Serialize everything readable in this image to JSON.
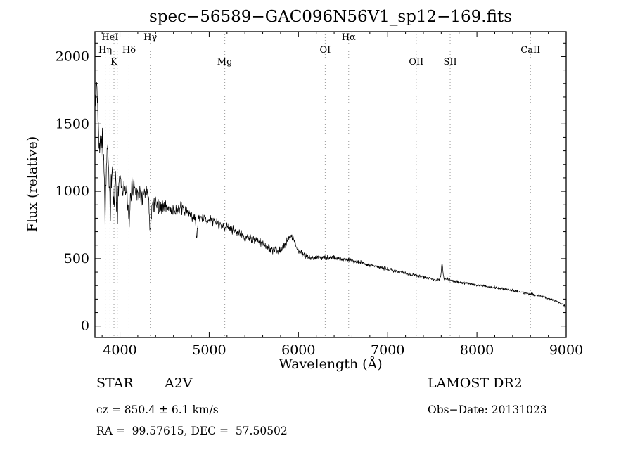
{
  "chart_data": {
    "type": "line",
    "title": "spec−56589−GAC096N56V1_sp12−169.fits",
    "xlabel": "Wavelength (Å)",
    "ylabel": "Flux (relative)",
    "xlim": [
      3720,
      9000
    ],
    "ylim": [
      -85,
      2185
    ],
    "x_ticks": [
      4000,
      5000,
      6000,
      7000,
      8000,
      9000
    ],
    "y_ticks": [
      0,
      500,
      1000,
      1500,
      2000
    ],
    "x_minor_step": 200,
    "y_minor_step": 100,
    "grid": false,
    "line_color": "#000000",
    "spectral_line_color": "#999999",
    "spectral_lines": [
      {
        "label": "Hη",
        "wavelength": 3835,
        "row": 2
      },
      {
        "label": "HeI",
        "wavelength": 3889,
        "row": 1
      },
      {
        "label": "K",
        "wavelength": 3933,
        "row": 3
      },
      {
        "label": "",
        "wavelength": 3970,
        "row": 2
      },
      {
        "label": "Hδ",
        "wavelength": 4102,
        "row": 2
      },
      {
        "label": "Hγ",
        "wavelength": 4340,
        "row": 1
      },
      {
        "label": "Mg",
        "wavelength": 5175,
        "row": 3
      },
      {
        "label": "OI",
        "wavelength": 6300,
        "row": 2
      },
      {
        "label": "Hα",
        "wavelength": 6563,
        "row": 1
      },
      {
        "label": "OII",
        "wavelength": 7320,
        "row": 3
      },
      {
        "label": "SII",
        "wavelength": 7700,
        "row": 3
      },
      {
        "label": "CaII",
        "wavelength": 8600,
        "row": 2
      }
    ],
    "continuum": [
      [
        3720,
        1600
      ],
      [
        3740,
        1800
      ],
      [
        3770,
        1350
      ],
      [
        3800,
        1400
      ],
      [
        3830,
        1150
      ],
      [
        3860,
        1300
      ],
      [
        3890,
        1100
      ],
      [
        3920,
        1150
      ],
      [
        3960,
        1100
      ],
      [
        4000,
        1100
      ],
      [
        4050,
        1000
      ],
      [
        4100,
        980
      ],
      [
        4150,
        1050
      ],
      [
        4200,
        1000
      ],
      [
        4250,
        950
      ],
      [
        4300,
        980
      ],
      [
        4350,
        900
      ],
      [
        4400,
        920
      ],
      [
        4450,
        880
      ],
      [
        4500,
        900
      ],
      [
        4600,
        850
      ],
      [
        4700,
        870
      ],
      [
        4800,
        820
      ],
      [
        4900,
        800
      ],
      [
        5000,
        790
      ],
      [
        5100,
        760
      ],
      [
        5200,
        730
      ],
      [
        5300,
        700
      ],
      [
        5400,
        660
      ],
      [
        5500,
        640
      ],
      [
        5600,
        610
      ],
      [
        5700,
        560
      ],
      [
        5800,
        560
      ],
      [
        5880,
        640
      ],
      [
        5920,
        680
      ],
      [
        5960,
        620
      ],
      [
        6000,
        560
      ],
      [
        6050,
        530
      ],
      [
        6100,
        515
      ],
      [
        6200,
        510
      ],
      [
        6300,
        505
      ],
      [
        6400,
        510
      ],
      [
        6500,
        495
      ],
      [
        6563,
        490
      ],
      [
        6650,
        480
      ],
      [
        6750,
        460
      ],
      [
        6850,
        445
      ],
      [
        6950,
        430
      ],
      [
        7050,
        415
      ],
      [
        7150,
        400
      ],
      [
        7250,
        385
      ],
      [
        7350,
        370
      ],
      [
        7450,
        355
      ],
      [
        7550,
        345
      ],
      [
        7650,
        350
      ],
      [
        7750,
        330
      ],
      [
        7850,
        320
      ],
      [
        7950,
        310
      ],
      [
        8050,
        300
      ],
      [
        8150,
        290
      ],
      [
        8250,
        280
      ],
      [
        8350,
        270
      ],
      [
        8450,
        258
      ],
      [
        8550,
        245
      ],
      [
        8650,
        230
      ],
      [
        8750,
        215
      ],
      [
        8850,
        195
      ],
      [
        8950,
        165
      ],
      [
        9000,
        140
      ]
    ],
    "features": [
      {
        "center": 3835,
        "amp": -300,
        "width": 8
      },
      {
        "center": 3889,
        "amp": -280,
        "width": 8
      },
      {
        "center": 3933,
        "amp": -250,
        "width": 7
      },
      {
        "center": 3970,
        "amp": -280,
        "width": 8
      },
      {
        "center": 4102,
        "amp": -260,
        "width": 9
      },
      {
        "center": 4340,
        "amp": -230,
        "width": 9
      },
      {
        "center": 4861,
        "amp": -150,
        "width": 9
      },
      {
        "center": 7610,
        "amp": 110,
        "width": 9
      }
    ],
    "noise_profile": [
      [
        3720,
        150
      ],
      [
        3800,
        160
      ],
      [
        3900,
        140
      ],
      [
        4000,
        110
      ],
      [
        4200,
        90
      ],
      [
        4400,
        75
      ],
      [
        4600,
        65
      ],
      [
        4800,
        55
      ],
      [
        5000,
        50
      ],
      [
        5200,
        45
      ],
      [
        5500,
        40
      ],
      [
        5800,
        35
      ],
      [
        6000,
        28
      ],
      [
        6300,
        22
      ],
      [
        6600,
        20
      ],
      [
        7000,
        17
      ],
      [
        7400,
        15
      ],
      [
        7800,
        13
      ],
      [
        8200,
        12
      ],
      [
        8600,
        11
      ],
      [
        9000,
        10
      ]
    ],
    "noise_seed": 42
  },
  "annotations": {
    "object_class": "STAR",
    "subclass": "A2V",
    "survey": "LAMOST DR2",
    "cz": "cz = 850.4 ± 6.1 km/s",
    "obs_date": "Obs−Date: 20131023",
    "coords": "RA =  99.57615, DEC =  57.50502"
  }
}
